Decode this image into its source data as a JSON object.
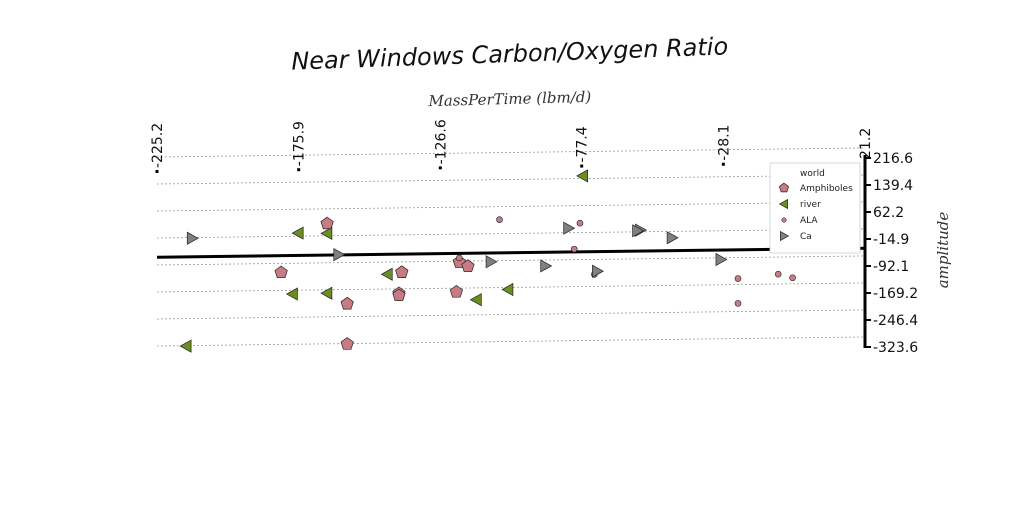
{
  "chart_data": {
    "type": "scatter",
    "title": "Near Windows Carbon/Oxygen Ratio",
    "xlabel": "MassPerTime (lbm/d)",
    "ylabel": "amplitude",
    "x_ticks": [
      "-225.2",
      "-175.9",
      "-126.6",
      "-77.4",
      "-28.1",
      "21.2"
    ],
    "y_ticks": [
      "216.6",
      "139.4",
      "62.2",
      "-14.9",
      "-92.1",
      "-169.2",
      "-246.4",
      "-323.6"
    ],
    "xlim": [
      -225.2,
      21.2
    ],
    "ylim": [
      -323.6,
      216.6
    ],
    "grid": true,
    "legend": {
      "title": "world",
      "position": "top-right"
    },
    "colors": {
      "Amphiboles": "#c97b84",
      "river": "#6b8e23",
      "ALA": "#c97b84",
      "Ca": "#808080"
    },
    "series": [
      {
        "name": "Amphiboles",
        "marker": "pentagon",
        "points": [
          [
            -166,
            20
          ],
          [
            -182,
            -118
          ],
          [
            -159,
            -210
          ],
          [
            -141,
            -182
          ],
          [
            -141,
            -188
          ],
          [
            -140,
            -122
          ],
          [
            -120,
            -95
          ],
          [
            -117,
            -107
          ],
          [
            -121,
            -180
          ],
          [
            -159,
            -325
          ]
        ]
      },
      {
        "name": "river",
        "marker": "triangle-left",
        "points": [
          [
            -77,
            147
          ],
          [
            -176,
            -6
          ],
          [
            -166,
            -8
          ],
          [
            -145,
            -127
          ],
          [
            -178,
            -180
          ],
          [
            -166,
            -179
          ],
          [
            -114,
            -203
          ],
          [
            -103,
            -175
          ],
          [
            -215,
            -325
          ]
        ]
      },
      {
        "name": "ALA",
        "marker": "circle",
        "points": [
          [
            -106,
            25
          ],
          [
            -78,
            12
          ],
          [
            -80,
            -62
          ],
          [
            -120,
            -83
          ],
          [
            -73,
            -135
          ],
          [
            -23,
            -152
          ],
          [
            -23,
            -223
          ],
          [
            -9,
            -141
          ],
          [
            -4,
            -152
          ]
        ]
      },
      {
        "name": "Ca",
        "marker": "triangle-right",
        "points": [
          [
            -213,
            -17
          ],
          [
            -82,
            -2
          ],
          [
            -57,
            -10
          ],
          [
            -58,
            -12
          ],
          [
            -46,
            -33
          ],
          [
            -162,
            -69
          ],
          [
            -109,
            -95
          ],
          [
            -90,
            -109
          ],
          [
            -72,
            -126
          ],
          [
            -29,
            -97
          ]
        ]
      }
    ]
  }
}
